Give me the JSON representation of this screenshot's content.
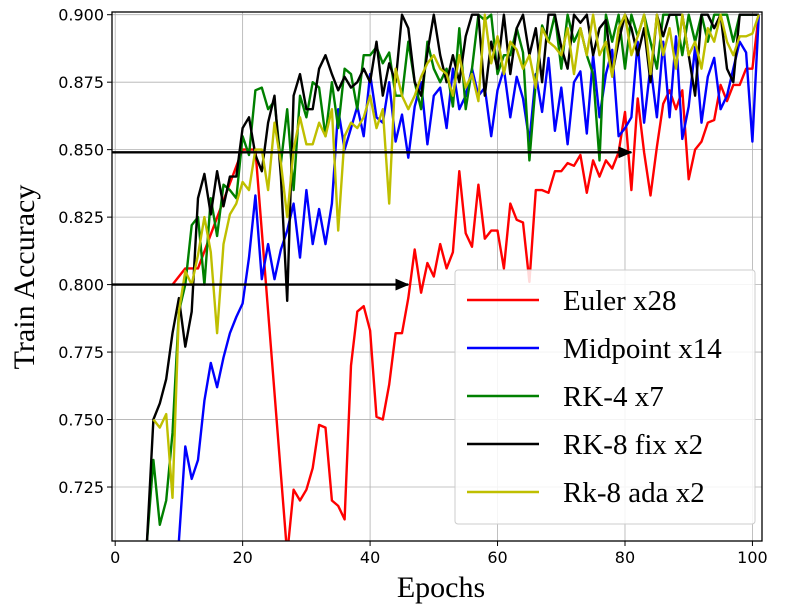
{
  "chart_data": {
    "type": "line",
    "xlabel": "Epochs",
    "ylabel": "Train Accuracy",
    "xlim": [
      -0.5,
      101.5
    ],
    "ylim": [
      0.705,
      0.901
    ],
    "xticks": [
      0,
      20,
      40,
      60,
      80,
      100
    ],
    "yticks": [
      0.725,
      0.75,
      0.775,
      0.8,
      0.825,
      0.85,
      0.875,
      0.9
    ],
    "xtick_labels": [
      "0",
      "20",
      "40",
      "60",
      "80",
      "100"
    ],
    "ytick_labels": [
      "0.725",
      "0.750",
      "0.775",
      "0.800",
      "0.825",
      "0.850",
      "0.875",
      "0.900"
    ],
    "grid": true,
    "legend_position": "bottom-right",
    "arrows": [
      {
        "y": 0.849,
        "x_start": -0.5,
        "x_end": 81
      },
      {
        "y": 0.8,
        "x_start": -0.5,
        "x_end": 46
      }
    ],
    "series": [
      {
        "name": "Euler x28",
        "color": "#ff0000",
        "x": [
          9,
          11,
          13,
          20,
          22,
          27,
          28,
          29,
          30,
          31,
          32,
          33,
          34,
          35,
          36,
          37,
          38,
          39,
          40,
          41,
          42,
          43,
          44,
          45,
          46,
          47,
          48,
          49,
          50,
          51,
          52,
          53,
          54,
          55,
          56,
          57,
          58,
          59,
          60,
          61,
          62,
          63,
          64,
          65,
          66,
          67,
          68,
          69,
          70,
          71,
          72,
          73,
          74,
          75,
          76,
          77,
          78,
          79,
          80,
          81,
          82,
          83,
          84,
          85,
          86,
          87,
          88,
          89,
          90,
          91,
          92,
          93,
          94,
          95,
          96,
          97,
          98,
          99,
          100,
          101
        ],
        "y": [
          0.8,
          0.806,
          0.806,
          0.85,
          0.85,
          0.7,
          0.724,
          0.72,
          0.724,
          0.732,
          0.748,
          0.747,
          0.72,
          0.718,
          0.713,
          0.77,
          0.79,
          0.792,
          0.783,
          0.751,
          0.75,
          0.763,
          0.782,
          0.782,
          0.795,
          0.813,
          0.797,
          0.808,
          0.803,
          0.815,
          0.806,
          0.812,
          0.842,
          0.819,
          0.814,
          0.837,
          0.817,
          0.82,
          0.82,
          0.806,
          0.83,
          0.824,
          0.823,
          0.801,
          0.835,
          0.835,
          0.834,
          0.842,
          0.842,
          0.845,
          0.844,
          0.848,
          0.834,
          0.846,
          0.84,
          0.846,
          0.843,
          0.849,
          0.864,
          0.835,
          0.869,
          0.849,
          0.833,
          0.851,
          0.867,
          0.872,
          0.865,
          0.872,
          0.839,
          0.85,
          0.853,
          0.86,
          0.861,
          0.874,
          0.868,
          0.874,
          0.874,
          0.88,
          0.88,
          0.9
        ]
      },
      {
        "name": "Midpoint x14",
        "color": "#0000ff",
        "x": [
          10,
          11,
          12,
          13,
          14,
          15,
          16,
          17,
          18,
          19,
          20,
          21,
          22,
          23,
          24,
          25,
          26,
          27,
          28,
          29,
          30,
          31,
          32,
          33,
          34,
          35,
          36,
          37,
          38,
          39,
          40,
          41,
          42,
          43,
          44,
          45,
          46,
          47,
          48,
          49,
          50,
          51,
          52,
          53,
          54,
          55,
          56,
          57,
          58,
          59,
          60,
          61,
          62,
          63,
          64,
          65,
          66,
          67,
          68,
          69,
          70,
          71,
          72,
          73,
          74,
          75,
          76,
          77,
          78,
          79,
          80,
          81,
          82,
          83,
          84,
          85,
          86,
          87,
          88,
          89,
          90,
          91,
          92,
          93,
          94,
          95,
          96,
          97,
          98,
          99,
          100,
          101
        ],
        "y": [
          0.705,
          0.74,
          0.728,
          0.735,
          0.757,
          0.771,
          0.762,
          0.773,
          0.782,
          0.788,
          0.793,
          0.81,
          0.833,
          0.802,
          0.815,
          0.802,
          0.813,
          0.82,
          0.83,
          0.81,
          0.835,
          0.815,
          0.828,
          0.815,
          0.83,
          0.865,
          0.85,
          0.858,
          0.866,
          0.855,
          0.878,
          0.862,
          0.86,
          0.875,
          0.853,
          0.863,
          0.847,
          0.866,
          0.875,
          0.852,
          0.87,
          0.873,
          0.858,
          0.88,
          0.865,
          0.87,
          0.88,
          0.87,
          0.873,
          0.855,
          0.872,
          0.88,
          0.862,
          0.877,
          0.869,
          0.853,
          0.878,
          0.864,
          0.884,
          0.857,
          0.873,
          0.852,
          0.875,
          0.879,
          0.856,
          0.885,
          0.862,
          0.878,
          0.887,
          0.855,
          0.858,
          0.862,
          0.89,
          0.86,
          0.881,
          0.862,
          0.89,
          0.862,
          0.892,
          0.854,
          0.866,
          0.888,
          0.86,
          0.877,
          0.884,
          0.865,
          0.87,
          0.88,
          0.89,
          0.886,
          0.853,
          0.9
        ]
      },
      {
        "name": "RK-4 x7",
        "color": "#008000",
        "x": [
          5,
          6,
          7,
          8,
          9,
          10,
          11,
          12,
          13,
          14,
          15,
          16,
          17,
          18,
          19,
          20,
          21,
          22,
          23,
          24,
          25,
          26,
          27,
          28,
          29,
          30,
          31,
          32,
          33,
          34,
          35,
          36,
          37,
          38,
          39,
          40,
          41,
          42,
          43,
          44,
          45,
          46,
          47,
          48,
          49,
          50,
          51,
          52,
          53,
          54,
          55,
          56,
          57,
          58,
          59,
          60,
          61,
          62,
          63,
          64,
          65,
          66,
          67,
          68,
          69,
          70,
          71,
          72,
          73,
          74,
          75,
          76,
          77,
          78,
          79,
          80,
          81,
          82,
          83,
          84,
          85,
          86,
          87,
          88,
          89,
          90,
          91,
          92,
          93,
          94,
          95,
          96,
          97,
          98,
          99,
          100,
          101
        ],
        "y": [
          0.705,
          0.735,
          0.711,
          0.72,
          0.745,
          0.79,
          0.8,
          0.822,
          0.825,
          0.8,
          0.832,
          0.818,
          0.837,
          0.835,
          0.832,
          0.855,
          0.848,
          0.872,
          0.873,
          0.865,
          0.868,
          0.845,
          0.865,
          0.835,
          0.87,
          0.862,
          0.875,
          0.873,
          0.855,
          0.875,
          0.858,
          0.88,
          0.878,
          0.865,
          0.885,
          0.885,
          0.888,
          0.882,
          0.886,
          0.87,
          0.87,
          0.89,
          0.875,
          0.865,
          0.89,
          0.88,
          0.875,
          0.88,
          0.866,
          0.895,
          0.865,
          0.88,
          0.9,
          0.898,
          0.9,
          0.878,
          0.885,
          0.885,
          0.895,
          0.886,
          0.846,
          0.875,
          0.896,
          0.89,
          0.9,
          0.88,
          0.9,
          0.89,
          0.895,
          0.885,
          0.878,
          0.846,
          0.9,
          0.89,
          0.9,
          0.88,
          0.9,
          0.892,
          0.9,
          0.89,
          0.88,
          0.9,
          0.9,
          0.9,
          0.885,
          0.9,
          0.89,
          0.9,
          0.89,
          0.9,
          0.9,
          0.9,
          0.89,
          0.9,
          0.9,
          0.9,
          0.9
        ]
      },
      {
        "name": "RK-8 fix x2",
        "color": "#000000",
        "x": [
          5,
          6,
          7,
          8,
          9,
          10,
          11,
          12,
          13,
          14,
          15,
          16,
          17,
          18,
          19,
          20,
          21,
          22,
          23,
          24,
          25,
          26,
          27,
          28,
          29,
          30,
          31,
          32,
          33,
          34,
          35,
          36,
          37,
          38,
          39,
          40,
          41,
          42,
          43,
          44,
          45,
          46,
          47,
          48,
          49,
          50,
          51,
          52,
          53,
          54,
          55,
          56,
          57,
          58,
          59,
          60,
          61,
          62,
          63,
          64,
          65,
          66,
          67,
          68,
          69,
          70,
          71,
          72,
          73,
          74,
          75,
          76,
          77,
          78,
          79,
          80,
          81,
          82,
          83,
          84,
          85,
          86,
          87,
          88,
          89,
          90,
          91,
          92,
          93,
          94,
          95,
          96,
          97,
          98,
          99,
          100,
          101
        ],
        "y": [
          0.705,
          0.75,
          0.756,
          0.765,
          0.782,
          0.795,
          0.777,
          0.79,
          0.832,
          0.841,
          0.826,
          0.842,
          0.829,
          0.84,
          0.84,
          0.858,
          0.862,
          0.848,
          0.842,
          0.86,
          0.87,
          0.84,
          0.794,
          0.87,
          0.878,
          0.865,
          0.865,
          0.88,
          0.885,
          0.878,
          0.872,
          0.877,
          0.873,
          0.875,
          0.88,
          0.875,
          0.89,
          0.87,
          0.882,
          0.875,
          0.9,
          0.895,
          0.875,
          0.87,
          0.886,
          0.9,
          0.885,
          0.875,
          0.885,
          0.875,
          0.892,
          0.9,
          0.9,
          0.87,
          0.89,
          0.88,
          0.9,
          0.878,
          0.895,
          0.9,
          0.885,
          0.895,
          0.875,
          0.9,
          0.9,
          0.888,
          0.88,
          0.9,
          0.897,
          0.9,
          0.885,
          0.895,
          0.898,
          0.878,
          0.89,
          0.9,
          0.895,
          0.885,
          0.895,
          0.875,
          0.9,
          0.892,
          0.9,
          0.9,
          0.9,
          0.885,
          0.87,
          0.9,
          0.9,
          0.895,
          0.9,
          0.88,
          0.875,
          0.9,
          0.9,
          0.9,
          0.9
        ]
      },
      {
        "name": "Rk-8 ada x2",
        "color": "#bfbf00",
        "x": [
          6,
          7,
          8,
          9,
          10,
          11,
          12,
          13,
          14,
          15,
          16,
          17,
          18,
          19,
          20,
          21,
          22,
          23,
          24,
          25,
          26,
          27,
          28,
          29,
          30,
          31,
          32,
          33,
          34,
          35,
          36,
          37,
          38,
          39,
          40,
          41,
          42,
          43,
          44,
          45,
          46,
          47,
          48,
          49,
          50,
          51,
          52,
          53,
          54,
          55,
          56,
          57,
          58,
          59,
          60,
          61,
          62,
          63,
          64,
          65,
          66,
          67,
          68,
          69,
          70,
          71,
          72,
          73,
          74,
          75,
          76,
          77,
          78,
          79,
          80,
          81,
          82,
          83,
          84,
          85,
          86,
          87,
          88,
          89,
          90,
          91,
          92,
          93,
          94,
          95,
          96,
          97,
          98,
          99,
          100,
          101
        ],
        "y": [
          0.75,
          0.747,
          0.752,
          0.721,
          0.79,
          0.805,
          0.8,
          0.811,
          0.825,
          0.812,
          0.782,
          0.815,
          0.826,
          0.83,
          0.838,
          0.835,
          0.85,
          0.85,
          0.835,
          0.86,
          0.845,
          0.825,
          0.85,
          0.862,
          0.852,
          0.852,
          0.86,
          0.855,
          0.865,
          0.82,
          0.855,
          0.86,
          0.858,
          0.862,
          0.87,
          0.858,
          0.865,
          0.83,
          0.88,
          0.87,
          0.865,
          0.87,
          0.877,
          0.882,
          0.885,
          0.88,
          0.878,
          0.87,
          0.885,
          0.873,
          0.878,
          0.868,
          0.9,
          0.882,
          0.892,
          0.878,
          0.89,
          0.887,
          0.88,
          0.885,
          0.873,
          0.895,
          0.89,
          0.888,
          0.885,
          0.895,
          0.878,
          0.895,
          0.885,
          0.9,
          0.885,
          0.89,
          0.877,
          0.895,
          0.9,
          0.885,
          0.892,
          0.9,
          0.878,
          0.9,
          0.885,
          0.895,
          0.88,
          0.9,
          0.885,
          0.89,
          0.88,
          0.895,
          0.89,
          0.9,
          0.89,
          0.885,
          0.892,
          0.892,
          0.893,
          0.9
        ]
      }
    ]
  }
}
